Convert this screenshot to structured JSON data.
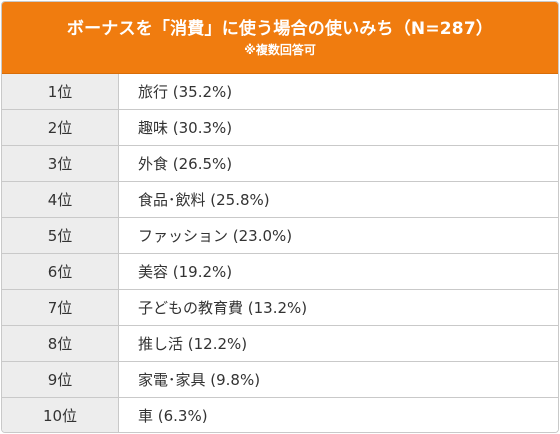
{
  "header": {
    "title": "ボーナスを「消費」に使う場合の使いみち（N=287）",
    "note": "※複数回答可"
  },
  "rows": [
    {
      "rank": "1位",
      "item": "旅行 (35.2%)"
    },
    {
      "rank": "2位",
      "item": "趣味 (30.3%)"
    },
    {
      "rank": "3位",
      "item": "外食 (26.5%)"
    },
    {
      "rank": "4位",
      "item": "食品･飲料 (25.8%)"
    },
    {
      "rank": "5位",
      "item": "ファッション (23.0%)"
    },
    {
      "rank": "6位",
      "item": "美容 (19.2%)"
    },
    {
      "rank": "7位",
      "item": "子どもの教育費 (13.2%)"
    },
    {
      "rank": "8位",
      "item": "推し活 (12.2%)"
    },
    {
      "rank": "9位",
      "item": "家電･家具 (9.8%)"
    },
    {
      "rank": "10位",
      "item": "車 (6.3%)"
    }
  ]
}
